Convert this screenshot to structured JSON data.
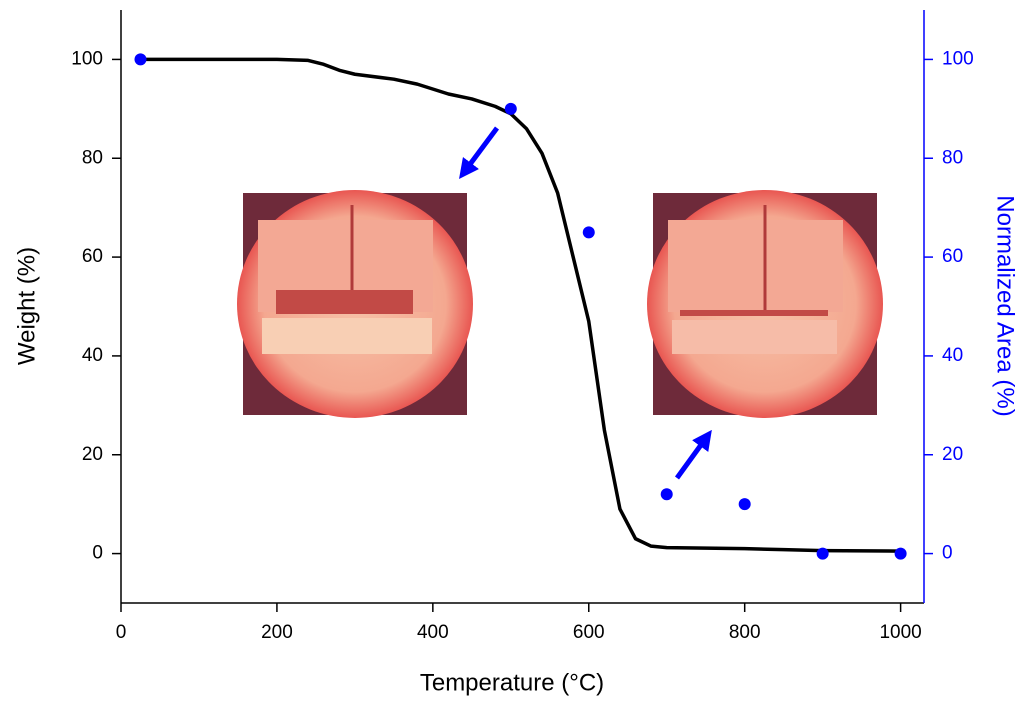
{
  "chart_data": {
    "type": "line",
    "x_label": "Temperature (°C)",
    "y_label": "Weight (%)",
    "y2_label": "Normalized Area (%)",
    "xlim": [
      0,
      1030
    ],
    "xticks": [
      0,
      200,
      400,
      600,
      800,
      1000
    ],
    "ylim": [
      -10,
      110
    ],
    "yticks": [
      0,
      20,
      40,
      60,
      80,
      100
    ],
    "y2lim": [
      -10,
      110
    ],
    "y2ticks": [
      0,
      20,
      40,
      60,
      80,
      100
    ],
    "y2color": "#0000ff",
    "series": [
      {
        "type": "line",
        "color": "#000000",
        "x": [
          25,
          100,
          200,
          240,
          260,
          280,
          300,
          350,
          380,
          420,
          450,
          480,
          500,
          520,
          540,
          560,
          580,
          600,
          620,
          640,
          660,
          680,
          700,
          800,
          850,
          900,
          1000
        ],
        "values": [
          100,
          100,
          100,
          99.8,
          99,
          97.8,
          97,
          96,
          95,
          93,
          92,
          90.5,
          89,
          86,
          81,
          73,
          60,
          47,
          25,
          9,
          3,
          1.5,
          1.2,
          1,
          0.8,
          0.6,
          0.5
        ]
      },
      {
        "type": "scatter",
        "axis": "y2",
        "color": "#0000ff",
        "x": [
          25,
          500,
          600,
          700,
          800,
          900,
          1000
        ],
        "values": [
          100,
          90,
          65,
          12,
          10,
          0,
          0
        ]
      }
    ]
  }
}
